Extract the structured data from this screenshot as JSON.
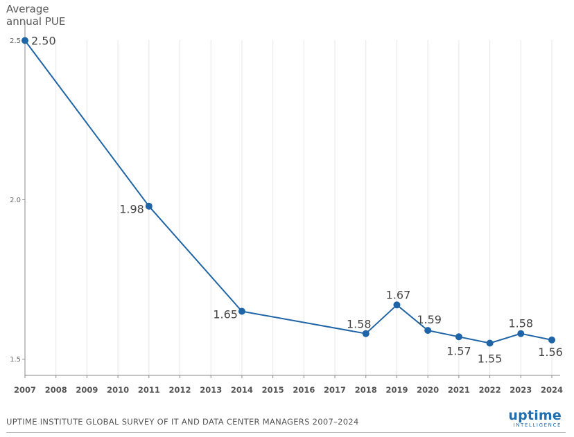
{
  "chart_data": {
    "type": "line",
    "ylabel": [
      "Average",
      "annual PUE"
    ],
    "x": [
      "2007",
      "2008",
      "2009",
      "2010",
      "2011",
      "2012",
      "2013",
      "2014",
      "2015",
      "2016",
      "2017",
      "2018",
      "2019",
      "2020",
      "2021",
      "2022",
      "2023",
      "2024"
    ],
    "series": [
      {
        "name": "Average annual PUE",
        "points": [
          {
            "x": "2007",
            "y": 2.5,
            "label": "2.50"
          },
          {
            "x": "2011",
            "y": 1.98,
            "label": "1.98"
          },
          {
            "x": "2014",
            "y": 1.65,
            "label": "1.65"
          },
          {
            "x": "2018",
            "y": 1.58,
            "label": "1.58"
          },
          {
            "x": "2019",
            "y": 1.67,
            "label": "1.67"
          },
          {
            "x": "2020",
            "y": 1.59,
            "label": "1.59"
          },
          {
            "x": "2021",
            "y": 1.57,
            "label": "1.57"
          },
          {
            "x": "2022",
            "y": 1.55,
            "label": "1.55"
          },
          {
            "x": "2023",
            "y": 1.58,
            "label": "1.58"
          },
          {
            "x": "2024",
            "y": 1.56,
            "label": "1.56"
          }
        ]
      }
    ],
    "yticks": [
      {
        "value": 2.5,
        "label": "2.5"
      },
      {
        "value": 2.0,
        "label": "2.0"
      },
      {
        "value": 1.5,
        "label": "1.5"
      }
    ],
    "ylim": [
      1.44,
      2.5
    ],
    "grid": true,
    "colors": {
      "line": "#1f64a6",
      "marker": "#1f64a6",
      "grid": "#e6e6e6",
      "axis": "#888888"
    }
  },
  "footer": {
    "source": "UPTIME INSTITUTE GLOBAL SURVEY OF IT AND DATA CENTER MANAGERS 2007–2024",
    "logo_word": "uptime",
    "logo_sub": "INTELLIGENCE"
  }
}
